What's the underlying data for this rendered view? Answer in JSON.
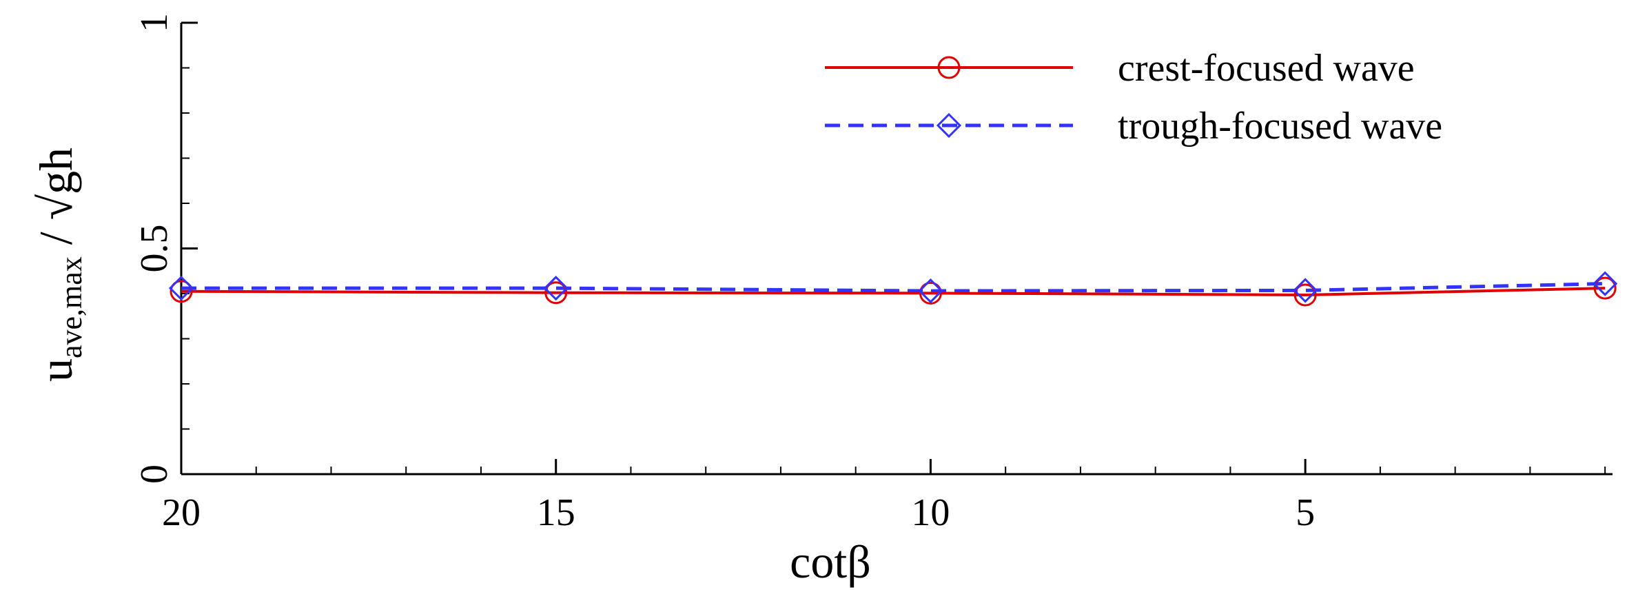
{
  "chart_data": {
    "type": "line",
    "title": "",
    "xlabel": "cotβ",
    "ylabel": {
      "base": "u",
      "subscript": "ave,max",
      "tail": " / √gh"
    },
    "xlim": [
      20,
      0.9
    ],
    "ylim": [
      0,
      1
    ],
    "x_axis_reversed": true,
    "x_ticks": [
      20,
      15,
      10,
      5
    ],
    "x_tick_labels": [
      "20",
      "15",
      "10",
      "5"
    ],
    "x_minor_step": 1,
    "y_ticks": [
      0,
      0.5,
      1
    ],
    "y_tick_labels": [
      "0",
      "0.5",
      "1"
    ],
    "y_minor_step": 0.1,
    "grid": false,
    "legend_position": "top-right",
    "series": [
      {
        "name": "crest-focused wave",
        "color": "#e00000",
        "line_style": "solid",
        "marker": "circle",
        "x": [
          20,
          15,
          10,
          5,
          1
        ],
        "y": [
          0.405,
          0.402,
          0.401,
          0.397,
          0.412
        ]
      },
      {
        "name": "trough-focused wave",
        "color": "#3333ff",
        "line_style": "dashed",
        "marker": "diamond",
        "x": [
          20,
          15,
          10,
          5,
          1
        ],
        "y": [
          0.412,
          0.412,
          0.406,
          0.407,
          0.422
        ]
      }
    ]
  }
}
